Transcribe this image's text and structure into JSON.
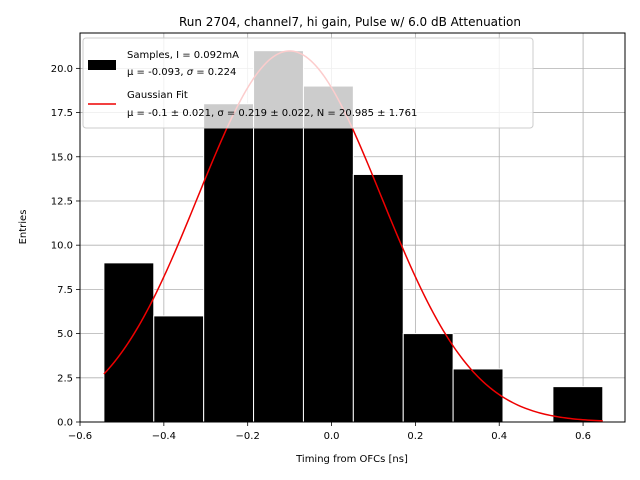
{
  "chart_data": {
    "type": "bar",
    "title": "Run 2704, channel7, hi gain, Pulse w/ 6.0 dB Attenuation",
    "xlabel": "Timing from OFCs [ns]",
    "ylabel": "Entries",
    "xlim": [
      -0.6,
      0.7
    ],
    "ylim": [
      0,
      22
    ],
    "grid": true,
    "xticks": [
      -0.6,
      -0.4,
      -0.2,
      0.0,
      0.2,
      0.4,
      0.6
    ],
    "xtick_labels": [
      "−0.6",
      "−0.4",
      "−0.2",
      "0.0",
      "0.2",
      "0.4",
      "0.6"
    ],
    "yticks": [
      0,
      2.5,
      5,
      7.5,
      10,
      12.5,
      15,
      17.5,
      20
    ],
    "ytick_labels": [
      "0.0",
      "2.5",
      "5.0",
      "7.5",
      "10.0",
      "12.5",
      "15.0",
      "17.5",
      "20.0"
    ],
    "bins": [
      {
        "left": -0.543,
        "right": -0.424,
        "count": 9
      },
      {
        "left": -0.424,
        "right": -0.305,
        "count": 6
      },
      {
        "left": -0.305,
        "right": -0.186,
        "count": 18
      },
      {
        "left": -0.186,
        "right": -0.067,
        "count": 21
      },
      {
        "left": -0.067,
        "right": 0.052,
        "count": 19
      },
      {
        "left": 0.052,
        "right": 0.171,
        "count": 14
      },
      {
        "left": 0.171,
        "right": 0.29,
        "count": 5
      },
      {
        "left": 0.29,
        "right": 0.409,
        "count": 3
      },
      {
        "left": 0.409,
        "right": 0.528,
        "count": 0
      },
      {
        "left": 0.528,
        "right": 0.647,
        "count": 2
      }
    ],
    "fit": {
      "type": "gaussian",
      "mu": -0.1,
      "sigma": 0.219,
      "N": 20.985,
      "x_range": [
        -0.543,
        0.647
      ]
    },
    "legend": {
      "position": "upper-left",
      "entries": [
        {
          "label_line1": "Samples, I = 0.092mA",
          "label_line2_prefix": "μ = -0.093, ",
          "label_line2_sym": "σ",
          "label_line2_suffix": " = 0.224"
        },
        {
          "label_line1": "Gaussian Fit",
          "label_line2": "μ = -0.1 ± 0.021, σ = 0.219 ± 0.022, N = 20.985 ± 1.761"
        }
      ]
    },
    "colors": {
      "bars": "#000000",
      "bar_edge": "#ffffff",
      "fit": "#ee0000",
      "grid": "#b0b0b0"
    }
  }
}
